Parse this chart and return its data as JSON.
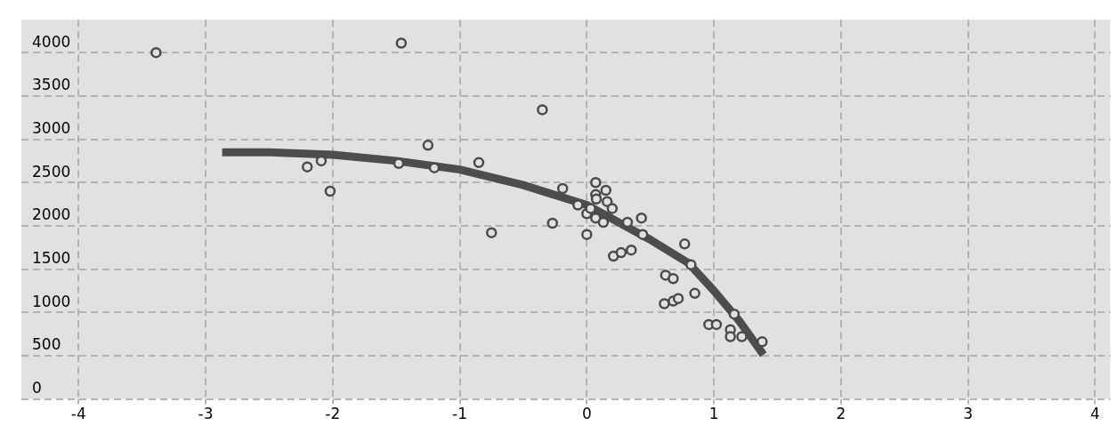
{
  "chart_data": {
    "type": "scatter",
    "xlim": [
      -4.45,
      4.12
    ],
    "ylim": [
      0,
      4380
    ],
    "xticks": [
      -4,
      -3,
      -2,
      -1,
      0,
      1,
      2,
      3,
      4
    ],
    "yticks": [
      0,
      500,
      1000,
      1500,
      2000,
      2500,
      3000,
      3500,
      4000
    ],
    "grid": true,
    "marker": "circle",
    "legend": false,
    "series": [
      {
        "color": "#4a4a4a",
        "x": [
          -3.39,
          -1.46,
          -2.2,
          -2.09,
          -2.02,
          -1.48,
          -1.25,
          -1.2,
          -0.85,
          -0.75,
          -0.35,
          -0.27,
          -0.19,
          -0.07,
          0.0,
          0.0,
          0.03,
          0.07,
          0.07,
          0.075,
          0.07,
          0.13,
          0.15,
          0.16,
          0.2,
          0.21,
          0.27,
          0.35,
          0.32,
          0.43,
          0.44,
          0.62,
          0.68,
          0.77,
          0.82,
          0.85,
          0.61,
          0.68,
          0.72,
          0.96,
          1.02,
          1.13,
          1.13,
          1.16,
          1.22,
          1.38
        ],
        "values": [
          4000,
          4110,
          2680,
          2750,
          2400,
          2720,
          2930,
          2670,
          2730,
          1920,
          3340,
          2030,
          2430,
          2240,
          2140,
          1900,
          2200,
          2500,
          2360,
          2310,
          2090,
          2040,
          2410,
          2280,
          2200,
          1650,
          1690,
          1720,
          2040,
          2090,
          1900,
          1430,
          1390,
          1790,
          1550,
          1220,
          1100,
          1130,
          1160,
          860,
          860,
          800,
          720,
          980,
          720,
          660
        ]
      },
      {
        "type": "line",
        "color": "#4d4d4d",
        "marker": "none",
        "line_style": "solid",
        "x": [
          -2.87,
          -2.5,
          -2,
          -1.5,
          -1,
          -0.5,
          0,
          0.5,
          0.8,
          1,
          1.2,
          1.39
        ],
        "values": [
          2850,
          2850,
          2820,
          2750,
          2650,
          2470,
          2240,
          1840,
          1570,
          1250,
          900,
          510
        ]
      }
    ]
  }
}
